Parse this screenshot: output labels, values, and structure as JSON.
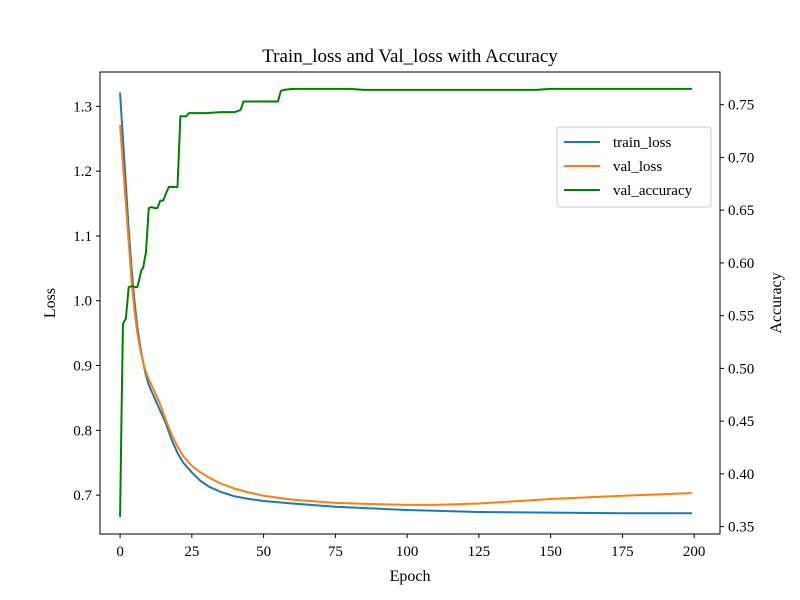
{
  "chart_data": {
    "type": "line",
    "title": "Train_loss and Val_loss with Accuracy",
    "xlabel": "Epoch",
    "ylabel": "Loss",
    "y2label": "Accuracy",
    "xlim": [
      -7,
      209
    ],
    "ylim": [
      0.64,
      1.353
    ],
    "y2lim": [
      0.343,
      0.781
    ],
    "xticks": [
      0,
      25,
      50,
      75,
      100,
      125,
      150,
      175,
      200
    ],
    "yticks": [
      0.7,
      0.8,
      0.9,
      1.0,
      1.1,
      1.2,
      1.3
    ],
    "y2ticks": [
      0.35,
      0.4,
      0.45,
      0.5,
      0.55,
      0.6,
      0.65,
      0.7,
      0.75
    ],
    "grid": false,
    "legend_position": "upper right",
    "series": [
      {
        "name": "train_loss",
        "axis": "left",
        "color": "#1f77b4",
        "x": [
          0,
          1,
          2,
          3,
          4,
          5,
          6,
          7,
          8,
          9,
          10,
          12,
          14,
          16,
          18,
          20,
          22,
          25,
          28,
          31,
          35,
          40,
          45,
          50,
          60,
          75,
          100,
          125,
          150,
          175,
          199
        ],
        "y": [
          1.32,
          1.25,
          1.18,
          1.11,
          1.05,
          1.0,
          0.96,
          0.93,
          0.905,
          0.885,
          0.87,
          0.85,
          0.83,
          0.81,
          0.785,
          0.765,
          0.75,
          0.735,
          0.722,
          0.713,
          0.705,
          0.698,
          0.694,
          0.691,
          0.687,
          0.682,
          0.677,
          0.674,
          0.673,
          0.672,
          0.672
        ]
      },
      {
        "name": "val_loss",
        "axis": "left",
        "color": "#ff7f0e",
        "x": [
          0,
          1,
          2,
          3,
          4,
          5,
          6,
          7,
          8,
          9,
          10,
          12,
          14,
          16,
          18,
          20,
          22,
          25,
          28,
          31,
          35,
          40,
          45,
          50,
          60,
          75,
          90,
          100,
          110,
          125,
          150,
          175,
          199
        ],
        "y": [
          1.27,
          1.21,
          1.15,
          1.09,
          1.03,
          0.985,
          0.95,
          0.925,
          0.905,
          0.89,
          0.878,
          0.86,
          0.84,
          0.815,
          0.793,
          0.775,
          0.76,
          0.745,
          0.735,
          0.727,
          0.718,
          0.71,
          0.704,
          0.699,
          0.693,
          0.688,
          0.686,
          0.685,
          0.685,
          0.687,
          0.694,
          0.699,
          0.703
        ]
      },
      {
        "name": "val_accuracy",
        "axis": "right",
        "color": "#008000",
        "x": [
          0,
          0.6,
          1,
          1.5,
          2,
          3,
          4,
          5,
          6,
          7,
          7.5,
          8,
          9,
          10,
          11,
          12,
          13,
          14,
          15,
          16,
          17,
          18,
          19,
          20,
          21,
          22,
          23,
          24,
          25,
          30,
          35,
          40,
          42,
          43,
          50,
          55,
          56,
          57,
          60,
          65,
          70,
          75,
          80,
          85,
          90,
          100,
          120,
          145,
          150,
          175,
          199
        ],
        "y": [
          0.36,
          0.475,
          0.542,
          0.545,
          0.547,
          0.577,
          0.578,
          0.577,
          0.577,
          0.588,
          0.594,
          0.595,
          0.61,
          0.652,
          0.653,
          0.652,
          0.652,
          0.659,
          0.659,
          0.666,
          0.672,
          0.672,
          0.672,
          0.672,
          0.739,
          0.739,
          0.739,
          0.742,
          0.742,
          0.742,
          0.743,
          0.743,
          0.745,
          0.753,
          0.753,
          0.753,
          0.763,
          0.764,
          0.765,
          0.765,
          0.765,
          0.765,
          0.765,
          0.764,
          0.764,
          0.764,
          0.764,
          0.764,
          0.765,
          0.765,
          0.765
        ]
      }
    ]
  }
}
